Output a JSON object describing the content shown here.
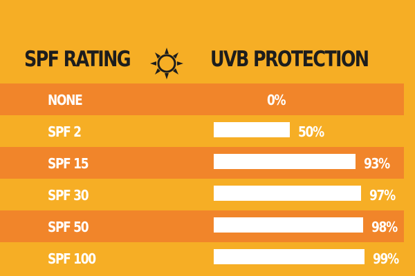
{
  "header": {
    "left_title": "SPF RATING",
    "right_title": "UVB PROTECTION",
    "icon": "sun-icon"
  },
  "colors": {
    "background": "#f6ae25",
    "band": "#f1852a",
    "bar": "#ffffff",
    "heading_text": "#1d1d1d"
  },
  "chart_data": {
    "type": "bar",
    "categories": [
      "NONE",
      "SPF 2",
      "SPF 15",
      "SPF 30",
      "SPF 50",
      "SPF 100"
    ],
    "values": [
      0,
      50,
      93,
      97,
      98,
      99
    ],
    "value_labels": [
      "0%",
      "50%",
      "93%",
      "97%",
      "98%",
      "99%"
    ],
    "unit": "%",
    "title": "",
    "xlabel": "SPF RATING",
    "ylabel": "UVB PROTECTION",
    "ylim": [
      0,
      100
    ],
    "orientation": "horizontal",
    "grid": false
  }
}
